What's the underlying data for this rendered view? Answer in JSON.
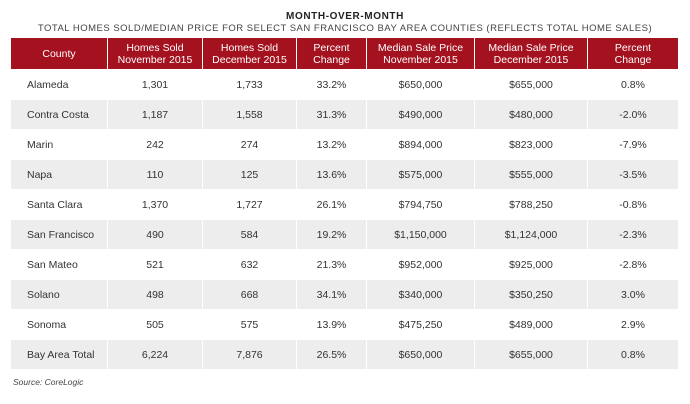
{
  "title": "MONTH-OVER-MONTH",
  "subtitle": "TOTAL HOMES SOLD/MEDIAN PRICE FOR SELECT SAN FRANCISCO BAY AREA COUNTIES (REFLECTS TOTAL HOME SALES)",
  "table": {
    "headers": [
      [
        "County"
      ],
      [
        "Homes Sold",
        "November 2015"
      ],
      [
        "Homes Sold",
        "December 2015"
      ],
      [
        "Percent",
        "Change"
      ],
      [
        "Median Sale Price",
        "November 2015"
      ],
      [
        "Median Sale Price",
        "December 2015"
      ],
      [
        "Percent",
        "Change"
      ]
    ],
    "rows": [
      [
        "Alameda",
        "1,301",
        "1,733",
        "33.2%",
        "$650,000",
        "$655,000",
        "0.8%"
      ],
      [
        "Contra Costa",
        "1,187",
        "1,558",
        "31.3%",
        "$490,000",
        "$480,000",
        "-2.0%"
      ],
      [
        "Marin",
        "242",
        "274",
        "13.2%",
        "$894,000",
        "$823,000",
        "-7.9%"
      ],
      [
        "Napa",
        "110",
        "125",
        "13.6%",
        "$575,000",
        "$555,000",
        "-3.5%"
      ],
      [
        "Santa Clara",
        "1,370",
        "1,727",
        "26.1%",
        "$794,750",
        "$788,250",
        "-0.8%"
      ],
      [
        "San Francisco",
        "490",
        "584",
        "19.2%",
        "$1,150,000",
        "$1,124,000",
        "-2.3%"
      ],
      [
        "San Mateo",
        "521",
        "632",
        "21.3%",
        "$952,000",
        "$925,000",
        "-2.8%"
      ],
      [
        "Solano",
        "498",
        "668",
        "34.1%",
        "$340,000",
        "$350,250",
        "3.0%"
      ],
      [
        "Sonoma",
        "505",
        "575",
        "13.9%",
        "$475,250",
        "$489,000",
        "2.9%"
      ],
      [
        "Bay Area Total",
        "6,224",
        "7,876",
        "26.5%",
        "$650,000",
        "$655,000",
        "0.8%"
      ]
    ]
  },
  "source": "Source: CoreLogic",
  "colors": {
    "header_bg": "#a4111f",
    "stripe_bg": "#ededed"
  }
}
